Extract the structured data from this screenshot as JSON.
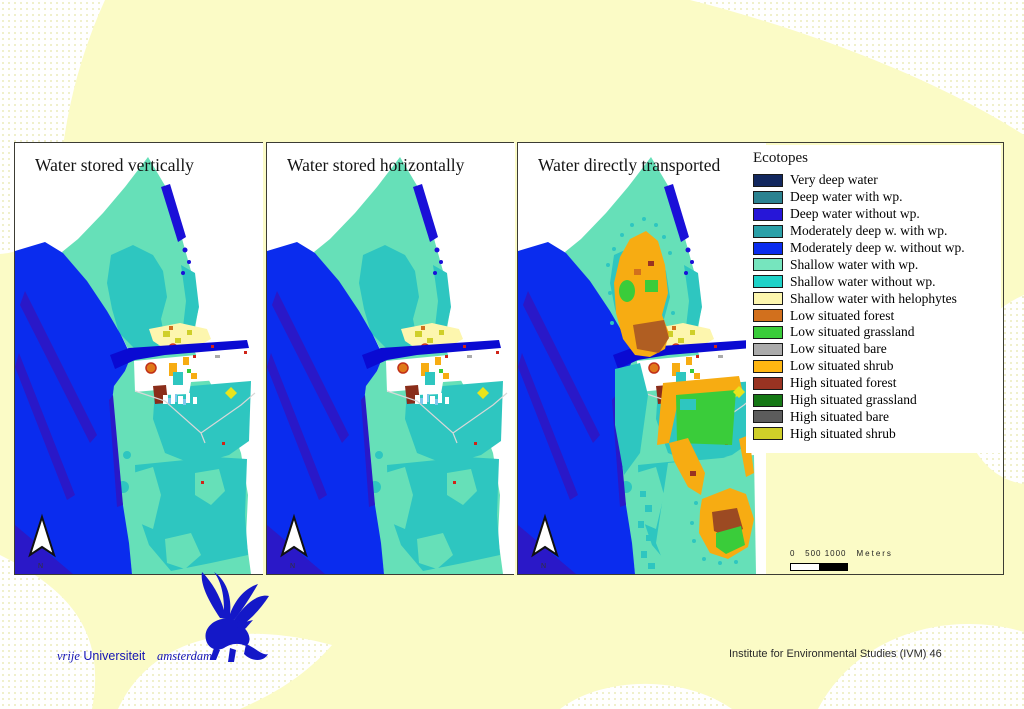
{
  "panels": [
    {
      "title": "Water stored vertically"
    },
    {
      "title": "Water stored horizontally"
    },
    {
      "title": "Water directly transported"
    }
  ],
  "legend": {
    "title": "Ecotopes",
    "items": [
      {
        "label": "Very deep water",
        "color": "#12275E"
      },
      {
        "label": "Deep water with wp.",
        "color": "#2B8290"
      },
      {
        "label": "Deep water without wp.",
        "color": "#2616D8"
      },
      {
        "label": "Moderately deep w. with wp.",
        "color": "#2BA0A8"
      },
      {
        "label": "Moderately deep w. without wp.",
        "color": "#0A2CEE"
      },
      {
        "label": "Shallow water with wp.",
        "color": "#76E5BE"
      },
      {
        "label": "Shallow water without wp.",
        "color": "#1ED2C8"
      },
      {
        "label": "Shallow water with helophytes",
        "color": "#FDF6AE"
      },
      {
        "label": "Low situated forest",
        "color": "#D2701D"
      },
      {
        "label": "Low situated grassland",
        "color": "#3ACC3A"
      },
      {
        "label": "Low situated bare",
        "color": "#ABABAB"
      },
      {
        "label": "Low situated shrub",
        "color": "#FFB612"
      },
      {
        "label": "High situated forest",
        "color": "#993322"
      },
      {
        "label": "High situated grassland",
        "color": "#157815"
      },
      {
        "label": "High situated bare",
        "color": "#5C5C5C"
      },
      {
        "label": "High situated shrub",
        "color": "#CFCF29"
      }
    ]
  },
  "scale_bar": {
    "numbers": "0   500 1000",
    "unit": "Meters"
  },
  "north_label": "N",
  "footer": {
    "credit": "Institute for Environmental Studies (IVM) 46"
  },
  "logo": {
    "word1": "vrije",
    "word2": "Universiteit",
    "word3": "amsterdam"
  },
  "colors": {
    "slide_background": "#FBFBC6",
    "sea_royal_blue": "#0A2CEE",
    "channel_dark_blue": "#0A0AD2",
    "land_aquamarine": "#66E0B8",
    "shallow_turquoise": "#2EC6C0",
    "logo_blue": "#1414B4"
  }
}
